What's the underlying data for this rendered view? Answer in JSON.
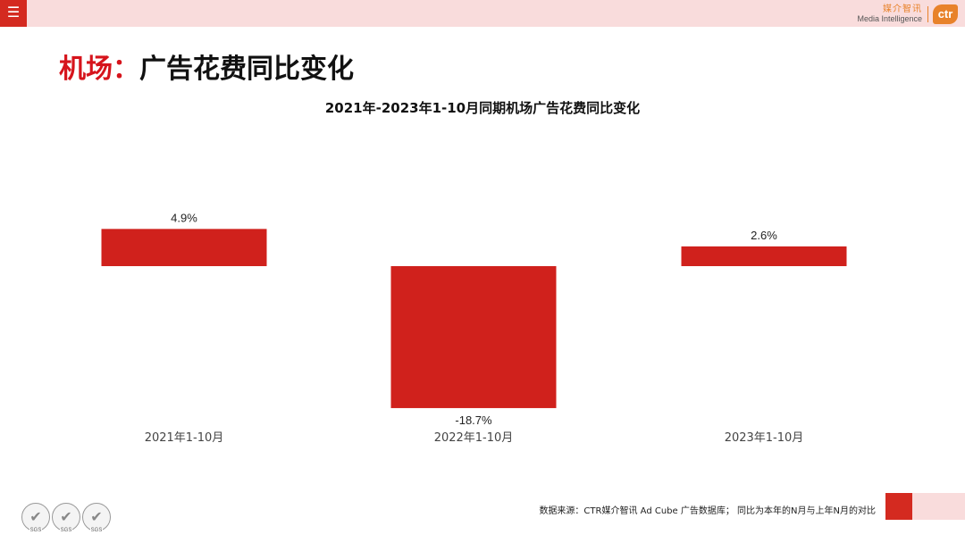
{
  "header": {
    "menu_icon": "menu-icon",
    "brand_cn": "媒介智讯",
    "brand_en": "Media Intelligence",
    "brand_logo": "ctr",
    "colors": {
      "accent": "#d42a20",
      "bar_pink": "#f9dcdc",
      "brand_orange": "#e8822a"
    }
  },
  "page": {
    "title_highlight": "机场：",
    "title_rest": "广告花费同比变化"
  },
  "chart_data": {
    "type": "bar",
    "title": "2021年-2023年1-10月同期机场广告花费同比变化",
    "categories": [
      "2021年1-10月",
      "2022年1-10月",
      "2023年1-10月"
    ],
    "values": [
      4.9,
      -18.7,
      2.6
    ],
    "value_labels": [
      "4.9%",
      "-18.7%",
      "2.6%"
    ],
    "unit": "%",
    "color": "#d0211c",
    "xlabel": "",
    "ylabel": "",
    "grid": false,
    "legend": "none"
  },
  "footer": {
    "source": "数据来源：CTR媒介智讯 Ad Cube 广告数据库；  同比为本年的N月与上年N月的对比",
    "badges": [
      {
        "icon": "sgs-check-icon",
        "label": "SGS"
      },
      {
        "icon": "sgs-check-icon",
        "label": "SGS"
      },
      {
        "icon": "sgs-check-icon",
        "label": "SGS"
      }
    ]
  }
}
